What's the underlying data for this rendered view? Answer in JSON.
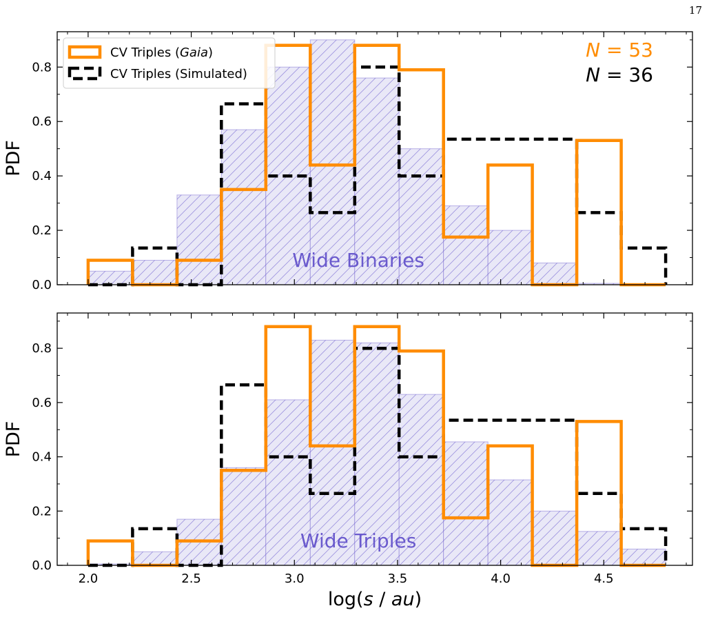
{
  "page_number": "17",
  "colors": {
    "gaia": "#ff8c00",
    "simulated": "#000000",
    "background_hatch": "#6a5acd",
    "background_fill": "#e9e8f7"
  },
  "chart_data": [
    {
      "type": "histogram",
      "panel": "top",
      "xlabel": "",
      "ylabel": "PDF",
      "xlim": [
        1.85,
        4.93
      ],
      "ylim": [
        0,
        0.93
      ],
      "x_ticks": [
        "2.0",
        "2.5",
        "3.0",
        "3.5",
        "4.0",
        "4.5"
      ],
      "y_ticks": [
        "0.0",
        "0.2",
        "0.4",
        "0.6",
        "0.8"
      ],
      "show_x_tick_labels": false,
      "bin_edges": [
        2.0,
        2.2154,
        2.4308,
        2.6462,
        2.8615,
        3.0769,
        3.2923,
        3.5077,
        3.7231,
        3.9385,
        4.1538,
        4.3692,
        4.5846,
        4.8
      ],
      "annotation": "Wide Binaries",
      "legend_position": "upper-left",
      "counts_label": {
        "gaia": "53",
        "simulated": "36"
      },
      "series": [
        {
          "name": "Wide Binaries",
          "style": "hatched-background",
          "values": [
            0.05,
            0.09,
            0.33,
            0.57,
            0.8,
            0.9,
            0.76,
            0.5,
            0.29,
            0.2,
            0.08,
            0.005,
            0.0
          ]
        },
        {
          "name": "CV Triples (Gaia)",
          "style": "orange-step",
          "values": [
            0.09,
            0.0,
            0.09,
            0.35,
            0.88,
            0.44,
            0.88,
            0.79,
            0.175,
            0.44,
            0.0,
            0.53,
            0.0
          ]
        },
        {
          "name": "CV Triples (Simulated)",
          "style": "black-dashed-step",
          "values": [
            0.0,
            0.135,
            0.0,
            0.665,
            0.4,
            0.265,
            0.8,
            0.4,
            0.535,
            0.535,
            0.535,
            0.265,
            0.135
          ]
        }
      ]
    },
    {
      "type": "histogram",
      "panel": "bottom",
      "xlabel": "log(s / au)",
      "ylabel": "PDF",
      "xlim": [
        1.85,
        4.93
      ],
      "ylim": [
        0,
        0.93
      ],
      "x_ticks": [
        "2.0",
        "2.5",
        "3.0",
        "3.5",
        "4.0",
        "4.5"
      ],
      "y_ticks": [
        "0.0",
        "0.2",
        "0.4",
        "0.6",
        "0.8"
      ],
      "show_x_tick_labels": true,
      "bin_edges": [
        2.0,
        2.2154,
        2.4308,
        2.6462,
        2.8615,
        3.0769,
        3.2923,
        3.5077,
        3.7231,
        3.9385,
        4.1538,
        4.3692,
        4.5846,
        4.8
      ],
      "annotation": "Wide Triples",
      "series": [
        {
          "name": "Wide Triples",
          "style": "hatched-background",
          "values": [
            0.005,
            0.05,
            0.17,
            0.36,
            0.61,
            0.83,
            0.82,
            0.63,
            0.455,
            0.315,
            0.2,
            0.125,
            0.06
          ]
        },
        {
          "name": "CV Triples (Gaia)",
          "style": "orange-step",
          "values": [
            0.09,
            0.0,
            0.09,
            0.35,
            0.88,
            0.44,
            0.88,
            0.79,
            0.175,
            0.44,
            0.0,
            0.53,
            0.0
          ]
        },
        {
          "name": "CV Triples (Simulated)",
          "style": "black-dashed-step",
          "values": [
            0.0,
            0.135,
            0.0,
            0.665,
            0.4,
            0.265,
            0.8,
            0.4,
            0.535,
            0.535,
            0.535,
            0.265,
            0.135
          ]
        }
      ]
    }
  ],
  "legend": {
    "gaia_prefix": "CV Triples (",
    "gaia_italic": "Gaia",
    "gaia_suffix": ")",
    "simulated_label": "CV Triples (Simulated)"
  },
  "n_label": {
    "symbol": "N",
    "equals": " = "
  }
}
